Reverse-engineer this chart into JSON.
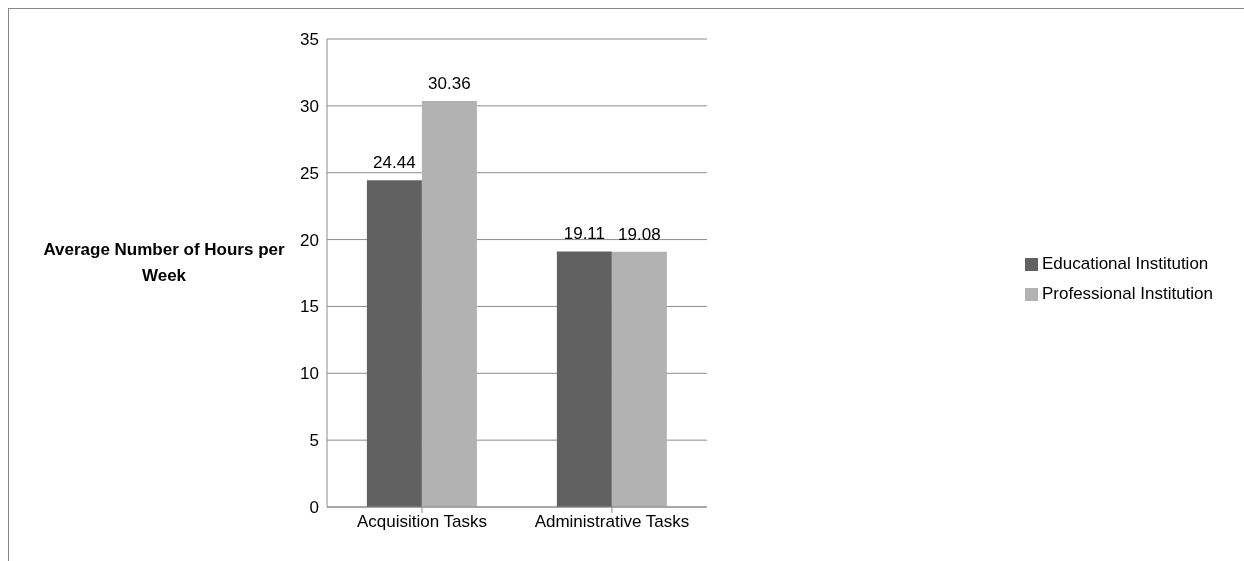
{
  "chart_data": {
    "type": "bar",
    "ylabel": "Average Number of Hours per Week",
    "categories": [
      "Acquisition Tasks",
      "Administrative Tasks"
    ],
    "series": [
      {
        "name": "Educational Institution",
        "color": "#616161",
        "values": [
          24.44,
          19.11
        ]
      },
      {
        "name": "Professional Institution",
        "color": "#b2b2b2",
        "values": [
          30.36,
          19.08
        ]
      }
    ],
    "ylim": [
      0,
      35
    ],
    "yticks": [
      0,
      5,
      10,
      15,
      20,
      25,
      30,
      35
    ],
    "grid": "y",
    "legend": "right",
    "data_labels": true
  }
}
